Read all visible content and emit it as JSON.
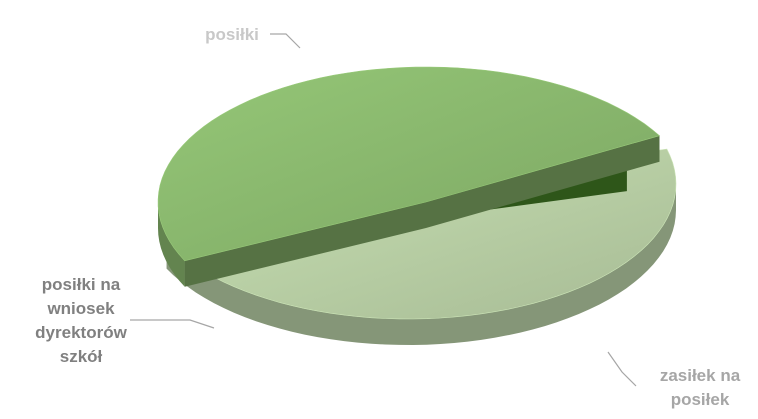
{
  "chart_data": {
    "type": "pie",
    "title": "",
    "categories": [
      "posiłki",
      "zasiłek na posiłek",
      "posiłki na wniosek dyrektorów szkół"
    ],
    "values": [
      47,
      49,
      4
    ],
    "colors": {
      "posiłki": "#b9d0a6",
      "zasiłek na posiłek": "#8ab86e",
      "posiłki na wniosek dyrektorów szkół": "#4a8a28"
    },
    "labels": {
      "posiłki": [
        "posiłki"
      ],
      "zasiłek na posiłek": [
        "zasiłek na",
        "posiłek"
      ],
      "posiłki na wniosek dyrektorów szkół": [
        "posiłki na",
        "wniosek",
        "dyrektorów",
        "szkół"
      ]
    },
    "label_colors": {
      "posiłki": "#c8c8c8",
      "zasiłek na posiłek": "#a6a6a6",
      "posiłki na wniosek dyrektorów szkół": "#808080"
    },
    "style": "3d-exploded",
    "legend": "none"
  }
}
